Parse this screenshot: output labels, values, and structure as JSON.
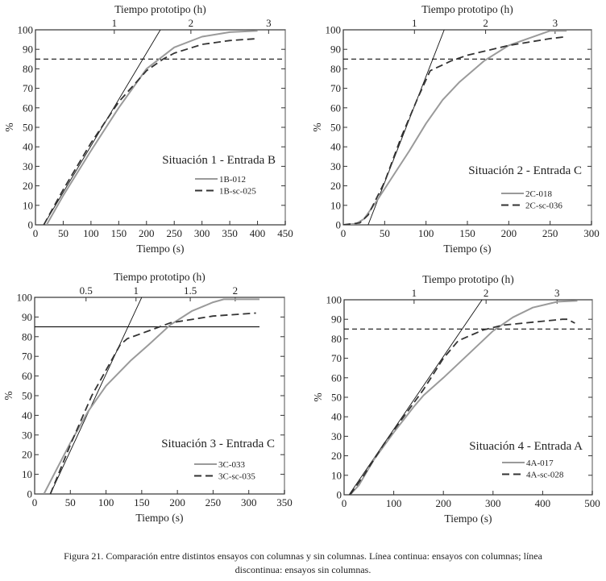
{
  "colors": {
    "with_columns": "#9a9a9a",
    "without_columns": "#333333",
    "reference": "#111111",
    "axis": "#333333"
  },
  "caption": {
    "line1": "Figura 21. Comparación entre distintos ensayos con columnas y sin columnas. Línea continua: ensayos con columnas; línea",
    "line2": "discontinua: ensayos sin columnas."
  },
  "chart_data": [
    {
      "type": "line",
      "title": "Situación 1 - Entrada B",
      "xlabel": "Tiempo (s)",
      "ylabel": "%",
      "x2label": "Tiempo prototipo (h)",
      "xlim": [
        0,
        450
      ],
      "ylim": [
        0,
        100
      ],
      "xticks": [
        0,
        50,
        100,
        150,
        200,
        250,
        300,
        350,
        400,
        450
      ],
      "yticks": [
        0,
        10,
        20,
        30,
        40,
        50,
        60,
        70,
        80,
        90,
        100
      ],
      "x2ticks": [
        {
          "label": "1",
          "at_s": 142
        },
        {
          "label": "2",
          "at_s": 280
        },
        {
          "label": "3",
          "at_s": 420
        }
      ],
      "threshold": {
        "y": 85,
        "style": "dashed"
      },
      "tangent": [
        [
          15,
          0
        ],
        [
          225,
          100
        ]
      ],
      "legend": "right",
      "series": [
        {
          "name": "1B-012",
          "style": "solid",
          "points": [
            [
              20,
              0
            ],
            [
              50,
              15
            ],
            [
              100,
              38
            ],
            [
              150,
              60
            ],
            [
              200,
              80
            ],
            [
              250,
              91
            ],
            [
              300,
              96.5
            ],
            [
              350,
              98.8
            ],
            [
              400,
              99.5
            ]
          ]
        },
        {
          "name": "1B-sc-025",
          "style": "dashed",
          "points": [
            [
              15,
              0
            ],
            [
              50,
              18
            ],
            [
              100,
              42
            ],
            [
              150,
              63
            ],
            [
              200,
              79
            ],
            [
              230,
              85
            ],
            [
              250,
              88
            ],
            [
              300,
              92.5
            ],
            [
              350,
              94.5
            ],
            [
              400,
              95.5
            ]
          ]
        }
      ]
    },
    {
      "type": "line",
      "title": "Situación 2 - Entrada C",
      "xlabel": "Tiempo (s)",
      "ylabel": "%",
      "x2label": "Tiempo prototipo (h)",
      "xlim": [
        0,
        300
      ],
      "ylim": [
        0,
        100
      ],
      "xticks": [
        0,
        50,
        100,
        150,
        200,
        250,
        300
      ],
      "yticks": [
        0,
        10,
        20,
        30,
        40,
        50,
        60,
        70,
        80,
        90,
        100
      ],
      "x2ticks": [
        {
          "label": "1",
          "at_s": 86
        },
        {
          "label": "2",
          "at_s": 172
        },
        {
          "label": "3",
          "at_s": 256
        }
      ],
      "threshold": {
        "y": 85,
        "style": "dashed"
      },
      "tangent": [
        [
          30,
          0
        ],
        [
          122,
          100
        ]
      ],
      "legend": "right",
      "series": [
        {
          "name": "2C-018",
          "style": "solid",
          "points": [
            [
              0,
              0
            ],
            [
              15,
              0.5
            ],
            [
              25,
              3
            ],
            [
              40,
              12
            ],
            [
              60,
              25
            ],
            [
              80,
              38
            ],
            [
              100,
              52
            ],
            [
              120,
              64
            ],
            [
              140,
              73
            ],
            [
              170,
              84
            ],
            [
              200,
              92
            ],
            [
              220,
              95
            ],
            [
              250,
              99.5
            ],
            [
              270,
              99.5
            ]
          ]
        },
        {
          "name": "2C-sc-036",
          "style": "dashed",
          "points": [
            [
              0,
              0
            ],
            [
              20,
              1
            ],
            [
              30,
              5
            ],
            [
              50,
              22
            ],
            [
              70,
              45
            ],
            [
              90,
              65
            ],
            [
              105,
              79
            ],
            [
              130,
              84
            ],
            [
              150,
              87
            ],
            [
              200,
              92
            ],
            [
              250,
              95.5
            ],
            [
              270,
              96.5
            ]
          ]
        }
      ]
    },
    {
      "type": "line",
      "title": "Situación 3 - Entrada C",
      "xlabel": "Tiempo (s)",
      "ylabel": "%",
      "x2label": "Tiempo prototipo (h)",
      "xlim": [
        0,
        350
      ],
      "ylim": [
        0,
        100
      ],
      "xticks": [
        0,
        50,
        100,
        150,
        200,
        250,
        300,
        350
      ],
      "yticks": [
        0,
        10,
        20,
        30,
        40,
        50,
        60,
        70,
        80,
        90,
        100
      ],
      "x2ticks": [
        {
          "label": "0.5",
          "at_s": 72
        },
        {
          "label": "1",
          "at_s": 142
        },
        {
          "label": "1.5",
          "at_s": 218
        },
        {
          "label": "2",
          "at_s": 281
        }
      ],
      "threshold": {
        "y": 85,
        "style": "solid"
      },
      "tangent": [
        [
          22,
          0
        ],
        [
          150,
          100
        ]
      ],
      "legend": "right",
      "series": [
        {
          "name": "3C-033",
          "style": "solid",
          "points": [
            [
              13,
              0
            ],
            [
              30,
              12
            ],
            [
              50,
              26
            ],
            [
              75,
              42
            ],
            [
              100,
              55
            ],
            [
              135,
              68
            ],
            [
              160,
              76
            ],
            [
              190,
              86
            ],
            [
              220,
              93
            ],
            [
              250,
              97.5
            ],
            [
              265,
              99
            ],
            [
              315,
              99
            ]
          ]
        },
        {
          "name": "3C-sc-035",
          "style": "dashed",
          "points": [
            [
              22,
              0
            ],
            [
              50,
              25
            ],
            [
              80,
              50
            ],
            [
              100,
              63
            ],
            [
              120,
              76
            ],
            [
              130,
              79
            ],
            [
              160,
              83
            ],
            [
              190,
              87
            ],
            [
              250,
              90.5
            ],
            [
              310,
              92
            ]
          ]
        }
      ]
    },
    {
      "type": "line",
      "title": "Situación 4 - Entrada A",
      "xlabel": "Tiempo (s)",
      "ylabel": "%",
      "x2label": "Tiempo prototipo (h)",
      "xlim": [
        0,
        500
      ],
      "ylim": [
        0,
        100
      ],
      "xticks": [
        0,
        100,
        200,
        300,
        400,
        500
      ],
      "yticks": [
        0,
        10,
        20,
        30,
        40,
        50,
        60,
        70,
        80,
        90,
        100
      ],
      "x2ticks": [
        {
          "label": "1",
          "at_s": 141
        },
        {
          "label": "2",
          "at_s": 286
        },
        {
          "label": "3",
          "at_s": 429
        }
      ],
      "threshold": {
        "y": 85,
        "style": "dashed"
      },
      "tangent": [
        [
          10,
          0
        ],
        [
          278,
          100
        ]
      ],
      "legend": "right",
      "series": [
        {
          "name": "4A-017",
          "style": "solid",
          "points": [
            [
              12,
              0
            ],
            [
              30,
              5
            ],
            [
              60,
              18
            ],
            [
              100,
              32
            ],
            [
              140,
              45
            ],
            [
              160,
              51
            ],
            [
              200,
              60
            ],
            [
              250,
              72
            ],
            [
              300,
              84
            ],
            [
              340,
              91
            ],
            [
              380,
              96
            ],
            [
              430,
              99
            ],
            [
              470,
              99.5
            ]
          ]
        },
        {
          "name": "4A-sc-028",
          "style": "dashed",
          "points": [
            [
              12,
              0
            ],
            [
              40,
              10
            ],
            [
              80,
              26
            ],
            [
              120,
              40
            ],
            [
              160,
              54
            ],
            [
              200,
              70
            ],
            [
              230,
              79
            ],
            [
              280,
              84.5
            ],
            [
              320,
              87
            ],
            [
              380,
              88.5
            ],
            [
              440,
              90
            ],
            [
              450,
              90
            ],
            [
              465,
              88
            ]
          ]
        }
      ]
    }
  ]
}
